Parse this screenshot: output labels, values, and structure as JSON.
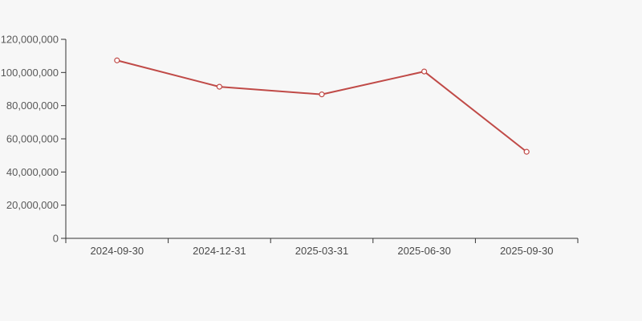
{
  "page": {
    "background_color": "#f7f7f7"
  },
  "chart_data": {
    "type": "line",
    "title": "",
    "xlabel": "",
    "ylabel": "",
    "categories": [
      "2024-09-30",
      "2024-12-31",
      "2025-03-31",
      "2025-06-30",
      "2025-09-30"
    ],
    "series": [
      {
        "name": "value",
        "values": [
          107300000,
          91400000,
          86800000,
          100600000,
          52200000
        ]
      }
    ],
    "ylim": [
      0,
      120000000
    ],
    "y_ticks": [
      0,
      20000000,
      40000000,
      60000000,
      80000000,
      100000000,
      120000000
    ],
    "y_tick_labels": [
      "0",
      "20,000,000",
      "40,000,000",
      "60,000,000",
      "80,000,000",
      "100,000,000",
      "120,000,000"
    ],
    "grid": false,
    "legend": false,
    "legend_position": "none",
    "line_color": "#c04a47",
    "marker_style": "open-circle",
    "marker_fill": "#ffffff",
    "axis_color": "#333333",
    "y_label_color": "#595959",
    "x_label_color": "#4a4a4a"
  }
}
